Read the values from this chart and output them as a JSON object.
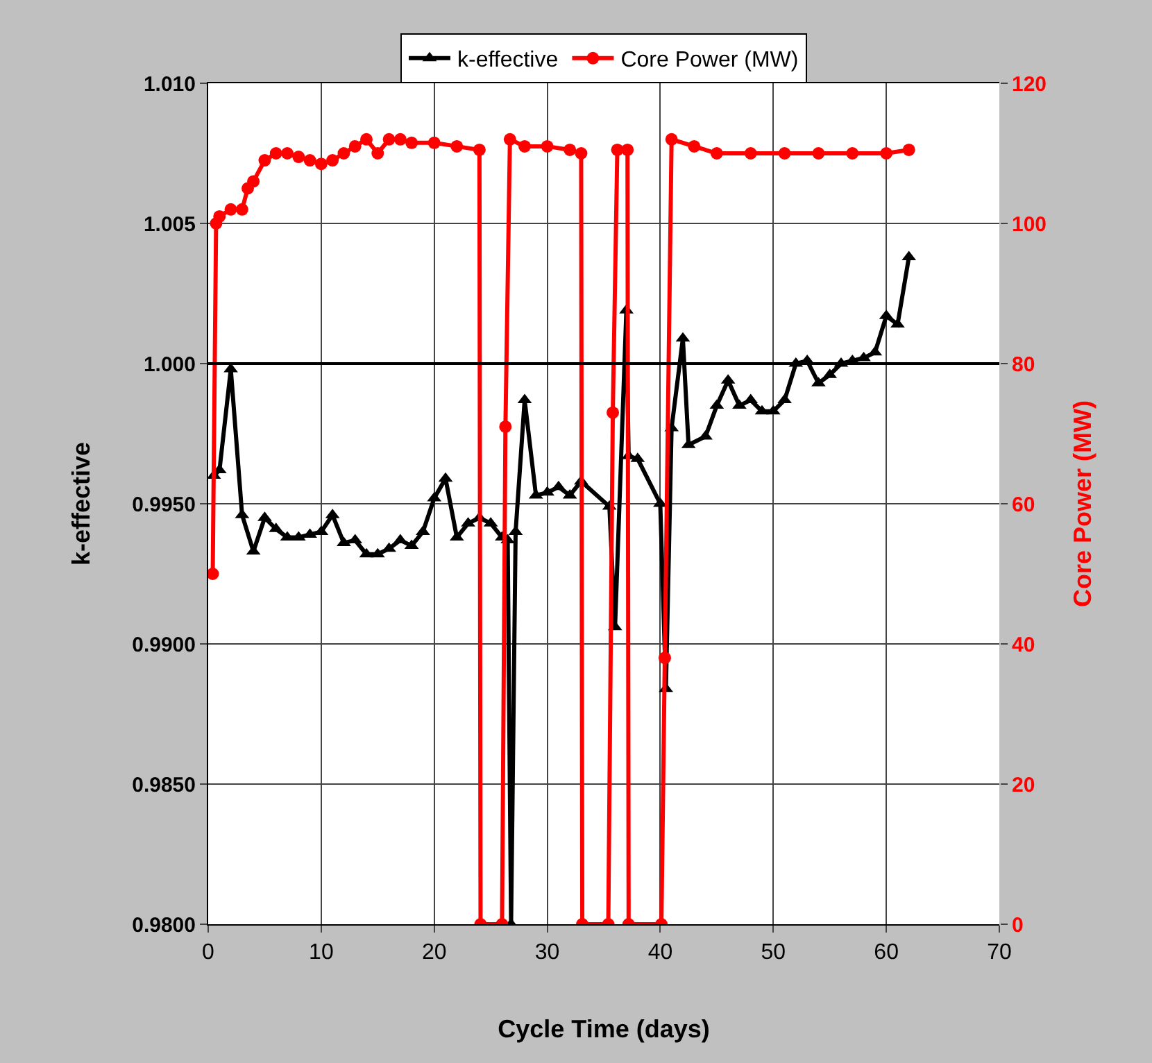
{
  "chart_data": {
    "type": "line",
    "xlabel": "Cycle Time (days)",
    "ylabel": "k-effective",
    "y2label": "Core Power (MW)",
    "xlim": [
      0,
      70
    ],
    "xticks": [
      0,
      10,
      20,
      30,
      40,
      50,
      60,
      70
    ],
    "ylim": [
      0.98,
      1.01
    ],
    "yticks": [
      {
        "value": 0.98,
        "label": "0.9800"
      },
      {
        "value": 0.985,
        "label": "0.9850"
      },
      {
        "value": 0.99,
        "label": "0.9900"
      },
      {
        "value": 0.995,
        "label": "0.9950"
      },
      {
        "value": 1.0,
        "label": "1.000"
      },
      {
        "value": 1.005,
        "label": "1.005"
      },
      {
        "value": 1.01,
        "label": "1.010"
      }
    ],
    "y2lim": [
      0,
      120
    ],
    "y2ticks": [
      0,
      20,
      40,
      60,
      80,
      100,
      120
    ],
    "grid": true,
    "legend": "top",
    "ref_lines": [
      {
        "axis": "y",
        "value": 1.0,
        "color": "#000000"
      }
    ],
    "series": [
      {
        "name": "k-effective",
        "color": "#000000",
        "marker": "triangle",
        "x": [
          0.5,
          1,
          2,
          3,
          4,
          5,
          6,
          7,
          8,
          9,
          10,
          11,
          12,
          13,
          14,
          15,
          16,
          17,
          18,
          19,
          20,
          21,
          22,
          23,
          24,
          25,
          26,
          26.5,
          26.8,
          27.2,
          28,
          29,
          30,
          31,
          32,
          33,
          35.5,
          36,
          37,
          37.2,
          38,
          40,
          40.5,
          41,
          42,
          42.5,
          44,
          45,
          46,
          47,
          48,
          49,
          50,
          51,
          52,
          53,
          54,
          55,
          56,
          57,
          58,
          59,
          60,
          61,
          62
        ],
        "values": [
          0.996,
          0.9962,
          0.9998,
          0.9946,
          0.9933,
          0.9945,
          0.9941,
          0.9938,
          0.9938,
          0.9939,
          0.994,
          0.9946,
          0.9936,
          0.9937,
          0.9932,
          0.9932,
          0.9934,
          0.9937,
          0.9935,
          0.994,
          0.9952,
          0.9959,
          0.9938,
          0.9943,
          0.9945,
          0.9943,
          0.9938,
          0.9937,
          0.98,
          0.994,
          0.9987,
          0.9953,
          0.9954,
          0.9956,
          0.9953,
          0.9958,
          0.9949,
          0.9906,
          1.0019,
          0.9967,
          0.9966,
          0.995,
          0.9884,
          0.9977,
          1.0009,
          0.9971,
          0.9974,
          0.9985,
          0.9994,
          0.9985,
          0.9987,
          0.9983,
          0.9983,
          0.9987,
          1.0,
          1.0001,
          0.9993,
          0.9996,
          1.0,
          1.0001,
          1.0002,
          1.0004,
          1.0017,
          1.0014,
          1.0038
        ]
      },
      {
        "name": "Core Power (MW)",
        "color": "#ff0000",
        "marker": "circle",
        "axis": "y2",
        "x": [
          0.4,
          0.7,
          1,
          2,
          3,
          3.5,
          4,
          5,
          6,
          7,
          8,
          9,
          10,
          11,
          12,
          13,
          14,
          15,
          16,
          17,
          18,
          20,
          22,
          24,
          24.1,
          26,
          26.3,
          26.7,
          28,
          30,
          32,
          33,
          33.1,
          35.4,
          35.8,
          36.2,
          37.1,
          37.2,
          40.1,
          40.4,
          41,
          43,
          45,
          48,
          51,
          54,
          57,
          60,
          62
        ],
        "values": [
          50,
          100,
          101,
          102,
          102,
          105,
          106,
          109,
          110,
          110,
          109.5,
          109,
          108.5,
          109,
          110,
          111,
          112,
          110,
          112,
          112,
          111.5,
          111.5,
          111,
          110.5,
          0,
          0,
          71,
          112,
          111,
          111,
          110.5,
          110,
          0,
          0,
          73,
          110.5,
          110.5,
          0,
          0,
          38,
          112,
          111,
          110,
          110,
          110,
          110,
          110,
          110,
          110.5
        ]
      }
    ]
  }
}
